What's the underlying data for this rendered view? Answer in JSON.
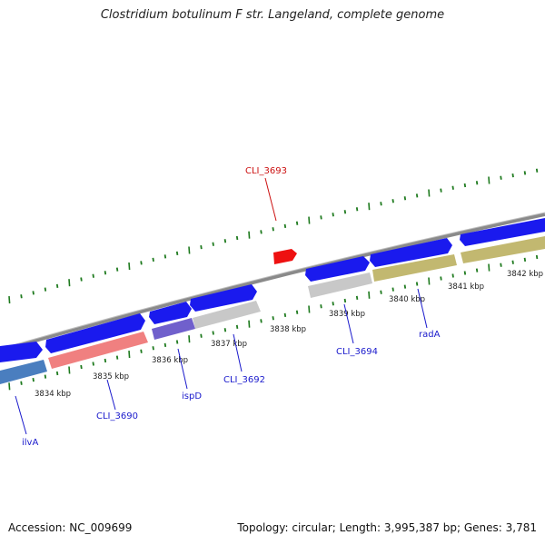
{
  "title": "Clostridium botulinum F str. Langeland, complete genome",
  "footer": {
    "accession": "Accession: NC_009699",
    "summary": "Topology: circular; Length: 3,995,387 bp; Genes: 3,781"
  },
  "colors": {
    "backbone": "#8c8c8c",
    "tick": "#1e7a1e",
    "forward_gene": "#1a1aee",
    "highlight_gene": "#ee1111",
    "label_blue": "#1a1acc",
    "label_red": "#cc1111"
  },
  "ticks": [
    "3834 kbp",
    "3835 kbp",
    "3836 kbp",
    "3837 kbp",
    "3838 kbp",
    "3839 kbp",
    "3840 kbp",
    "3841 kbp",
    "3842 kbp"
  ],
  "gene_labels": [
    {
      "text": "ilvA",
      "color": "blue"
    },
    {
      "text": "CLI_3690",
      "color": "blue"
    },
    {
      "text": "ispD",
      "color": "blue"
    },
    {
      "text": "CLI_3692",
      "color": "blue"
    },
    {
      "text": "CLI_3693",
      "color": "red"
    },
    {
      "text": "CLI_3694",
      "color": "blue"
    },
    {
      "text": "radA",
      "color": "blue"
    }
  ]
}
